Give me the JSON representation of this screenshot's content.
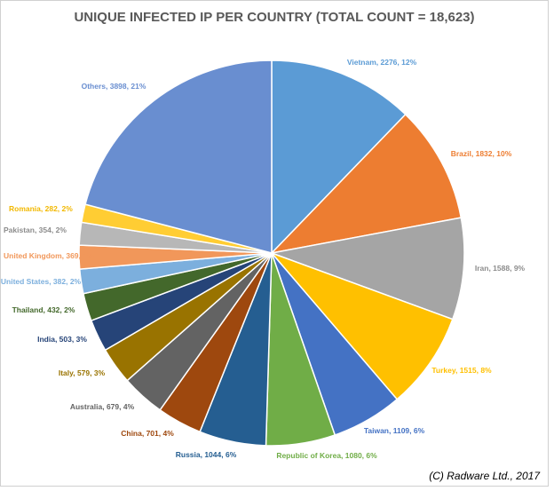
{
  "chart_data": {
    "type": "pie",
    "title": "UNIQUE INFECTED IP PER COUNTRY (TOTAL COUNT = 18,623)",
    "slices": [
      {
        "label": "Vietnam, 2276, 12%",
        "value": 2276,
        "color": "#5b9bd5"
      },
      {
        "label": "Brazil, 1832, 10%",
        "value": 1832,
        "color": "#ed7d31"
      },
      {
        "label": "Iran, 1588, 9%",
        "value": 1588,
        "color": "#a5a5a5"
      },
      {
        "label": "Turkey, 1515, 8%",
        "value": 1515,
        "color": "#ffc000"
      },
      {
        "label": "Taiwan, 1109, 6%",
        "value": 1109,
        "color": "#4472c4"
      },
      {
        "label": "Republic of Korea, 1080, 6%",
        "value": 1080,
        "color": "#70ad47"
      },
      {
        "label": "Russia, 1044, 6%",
        "value": 1044,
        "color": "#255e91"
      },
      {
        "label": "China, 701, 4%",
        "value": 701,
        "color": "#9e480e"
      },
      {
        "label": "Australia, 679, 4%",
        "value": 679,
        "color": "#636363"
      },
      {
        "label": "Italy, 579, 3%",
        "value": 579,
        "color": "#997300"
      },
      {
        "label": "India, 503, 3%",
        "value": 503,
        "color": "#264478"
      },
      {
        "label": "Thailand, 432, 2%",
        "value": 432,
        "color": "#43682b"
      },
      {
        "label": "United States, 382, 2%",
        "value": 382,
        "color": "#7cafdd"
      },
      {
        "label": "United Kingdom, 369, 2%",
        "value": 369,
        "color": "#f1975a"
      },
      {
        "label": "Pakistan, 354, 2%",
        "value": 354,
        "color": "#b7b7b7"
      },
      {
        "label": "Romania, 282, 2%",
        "value": 282,
        "color": "#ffcd33"
      },
      {
        "label": "Others, 3898, 21%",
        "value": 3898,
        "color": "#698ed0"
      }
    ]
  },
  "copyright": "(C) Radware Ltd., 2017"
}
